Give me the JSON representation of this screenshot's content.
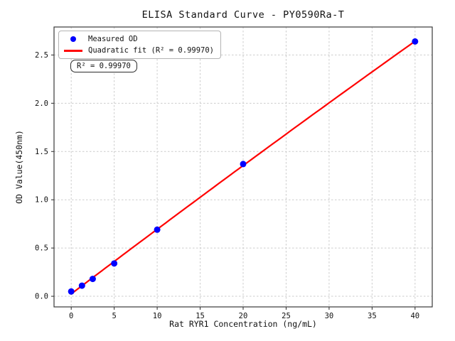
{
  "chart_data": {
    "type": "scatter",
    "title": "ELISA Standard Curve - PY0590Ra-T",
    "xlabel": "Rat RYR1 Concentration (ng/mL)",
    "ylabel": "OD Value(450nm)",
    "xlim": [
      -2,
      42
    ],
    "ylim": [
      -0.11,
      2.79
    ],
    "xticks": {
      "values": [
        0,
        5,
        10,
        15,
        20,
        25,
        30,
        35,
        40
      ],
      "labels": [
        "0",
        "5",
        "10",
        "15",
        "20",
        "25",
        "30",
        "35",
        "40"
      ]
    },
    "yticks": {
      "values": [
        0,
        0.5,
        1.0,
        1.5,
        2.0,
        2.5
      ],
      "labels": [
        "0.0",
        "0.5",
        "1.0",
        "1.5",
        "2.0",
        "2.5"
      ]
    },
    "grid": {
      "show": true,
      "style": "dashed",
      "color": "#cccccc"
    },
    "legend_position": "upper left",
    "series": [
      {
        "name": "Measured OD",
        "type": "scatter",
        "color": "#0000FF",
        "x": [
          0,
          1.25,
          2.5,
          5,
          10,
          20,
          40
        ],
        "y": [
          0.05,
          0.11,
          0.18,
          0.34,
          0.69,
          1.37,
          2.64
        ]
      },
      {
        "name": "Quadratic fit (R² = 0.99970)",
        "type": "quadratic-fit",
        "color": "#FF0000",
        "fit_of_series": 0,
        "x_range": [
          0,
          40
        ],
        "r_squared": 0.9997
      }
    ]
  },
  "legend": {
    "items": [
      {
        "label": "Measured OD",
        "marker": "dot",
        "color": "#0000FF"
      },
      {
        "label": "Quadratic fit (R² = 0.99970)",
        "marker": "line",
        "color": "#FF0000"
      }
    ]
  },
  "annotation": {
    "text": "R² = 0.99970"
  }
}
